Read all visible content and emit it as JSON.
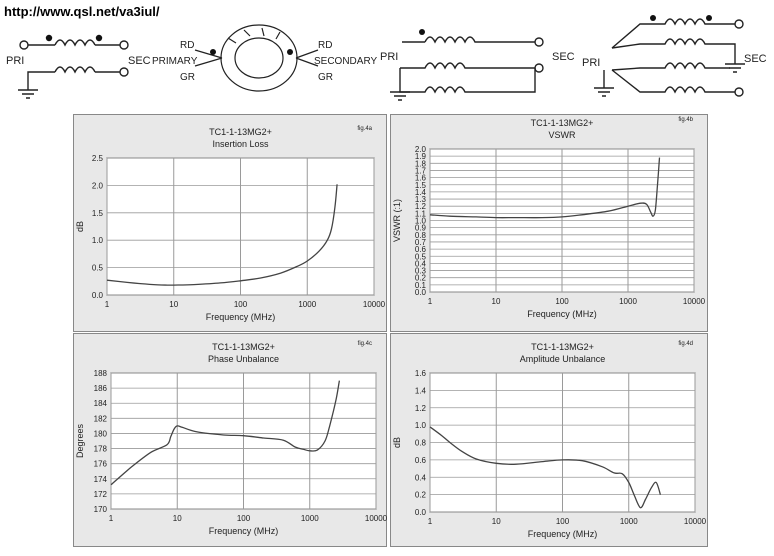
{
  "url": "http://www.qsl.net/va3iul/",
  "schematics": {
    "s1": {
      "pri": "PRI",
      "sec": "SEC"
    },
    "s2": {
      "rd_left": "RD",
      "primary": "PRIMARY",
      "gr_left": "GR",
      "rd_right": "RD",
      "secondary": "SECONDARY",
      "gr_right": "GR"
    },
    "s3": {
      "pri": "PRI",
      "sec": "SEC"
    },
    "s4": {
      "pri": "PRI",
      "sec": "SEC"
    }
  },
  "colors": {
    "panel_bg": "#e8e8e8",
    "plot_bg": "#ffffff",
    "grid": "#9a9a9a",
    "curve": "#444444",
    "frame": "#888888"
  },
  "chart_data": [
    {
      "type": "line",
      "fig": "fig.4a",
      "title": "TC1-1-13MG2+",
      "subtitle": "Insertion Loss",
      "xlabel": "Frequency (MHz)",
      "ylabel": "dB",
      "xscale": "log",
      "xlim": [
        1,
        10000
      ],
      "ylim": [
        0,
        2.5
      ],
      "x_ticks": [
        "1",
        "10",
        "100",
        "1000",
        "10000"
      ],
      "y_ticks": [
        "0.0",
        "0.5",
        "1.0",
        "1.5",
        "2.0",
        "2.5"
      ],
      "grid": true,
      "series": [
        {
          "x": [
            1,
            2,
            3,
            5,
            8,
            10,
            20,
            50,
            100,
            200,
            400,
            700,
            1000,
            1500,
            2000,
            2300,
            2600,
            2800
          ],
          "y": [
            0.27,
            0.23,
            0.21,
            0.19,
            0.18,
            0.18,
            0.19,
            0.22,
            0.26,
            0.31,
            0.4,
            0.52,
            0.62,
            0.8,
            1.0,
            1.2,
            1.6,
            2.02
          ]
        }
      ]
    },
    {
      "type": "line",
      "fig": "fig.4b",
      "title": "TC1-1-13MG2+",
      "subtitle": "VSWR",
      "xlabel": "Frequency (MHz)",
      "ylabel": "VSWR (:1)",
      "xscale": "log",
      "xlim": [
        1,
        10000
      ],
      "ylim": [
        0,
        2.0
      ],
      "x_ticks": [
        "1",
        "10",
        "100",
        "1000",
        "10000"
      ],
      "y_ticks": [
        "0.0",
        "0.1",
        "0.2",
        "0.3",
        "0.4",
        "0.5",
        "0.6",
        "0.7",
        "0.8",
        "0.9",
        "1.0",
        "1.1",
        "1.2",
        "1.3",
        "1.4",
        "1.5",
        "1.6",
        "1.7",
        "1.8",
        "1.9",
        "2.0"
      ],
      "grid": true,
      "series": [
        {
          "x": [
            1,
            2,
            5,
            10,
            20,
            50,
            100,
            200,
            500,
            1000,
            1500,
            1900,
            2200,
            2400,
            2600,
            2800,
            3000
          ],
          "y": [
            1.08,
            1.06,
            1.05,
            1.04,
            1.04,
            1.04,
            1.05,
            1.08,
            1.13,
            1.2,
            1.24,
            1.23,
            1.12,
            1.06,
            1.15,
            1.5,
            1.88
          ]
        }
      ]
    },
    {
      "type": "line",
      "fig": "fig.4c",
      "title": "TC1-1-13MG2+",
      "subtitle": "Phase Unbalance",
      "xlabel": "Frequency (MHz)",
      "ylabel": "Degrees",
      "xscale": "log",
      "xlim": [
        1,
        10000
      ],
      "ylim": [
        170,
        188
      ],
      "x_ticks": [
        "1",
        "10",
        "100",
        "1000",
        "10000"
      ],
      "y_ticks": [
        "170",
        "172",
        "174",
        "176",
        "178",
        "180",
        "182",
        "184",
        "186",
        "188"
      ],
      "grid": true,
      "series": [
        {
          "x": [
            1,
            2,
            4,
            7,
            8,
            9,
            10,
            12,
            20,
            50,
            100,
            200,
            400,
            600,
            800,
            1000,
            1300,
            1700,
            2000,
            2500,
            2800
          ],
          "y": [
            173.2,
            175.5,
            177.5,
            178.5,
            179.6,
            180.6,
            181.0,
            180.8,
            180.2,
            179.8,
            179.7,
            179.4,
            179.1,
            178.2,
            177.9,
            177.7,
            177.8,
            179.0,
            181.0,
            184.5,
            187.0
          ]
        }
      ]
    },
    {
      "type": "line",
      "fig": "fig.4d",
      "title": "TC1-1-13MG2+",
      "subtitle": "Amplitude Unbalance",
      "xlabel": "Frequency (MHz)",
      "ylabel": "dB",
      "xscale": "log",
      "xlim": [
        1,
        10000
      ],
      "ylim": [
        0,
        1.6
      ],
      "x_ticks": [
        "1",
        "10",
        "100",
        "1000",
        "10000"
      ],
      "y_ticks": [
        "0.0",
        "0.2",
        "0.4",
        "0.6",
        "0.8",
        "1.0",
        "1.2",
        "1.4",
        "1.6"
      ],
      "grid": true,
      "series": [
        {
          "x": [
            1,
            1.5,
            2,
            3,
            5,
            10,
            20,
            50,
            100,
            200,
            400,
            600,
            800,
            1000,
            1200,
            1500,
            1800,
            2200,
            2600,
            3000
          ],
          "y": [
            0.98,
            0.88,
            0.8,
            0.7,
            0.61,
            0.56,
            0.55,
            0.58,
            0.6,
            0.59,
            0.52,
            0.45,
            0.44,
            0.34,
            0.2,
            0.05,
            0.15,
            0.28,
            0.34,
            0.2
          ]
        }
      ]
    }
  ]
}
